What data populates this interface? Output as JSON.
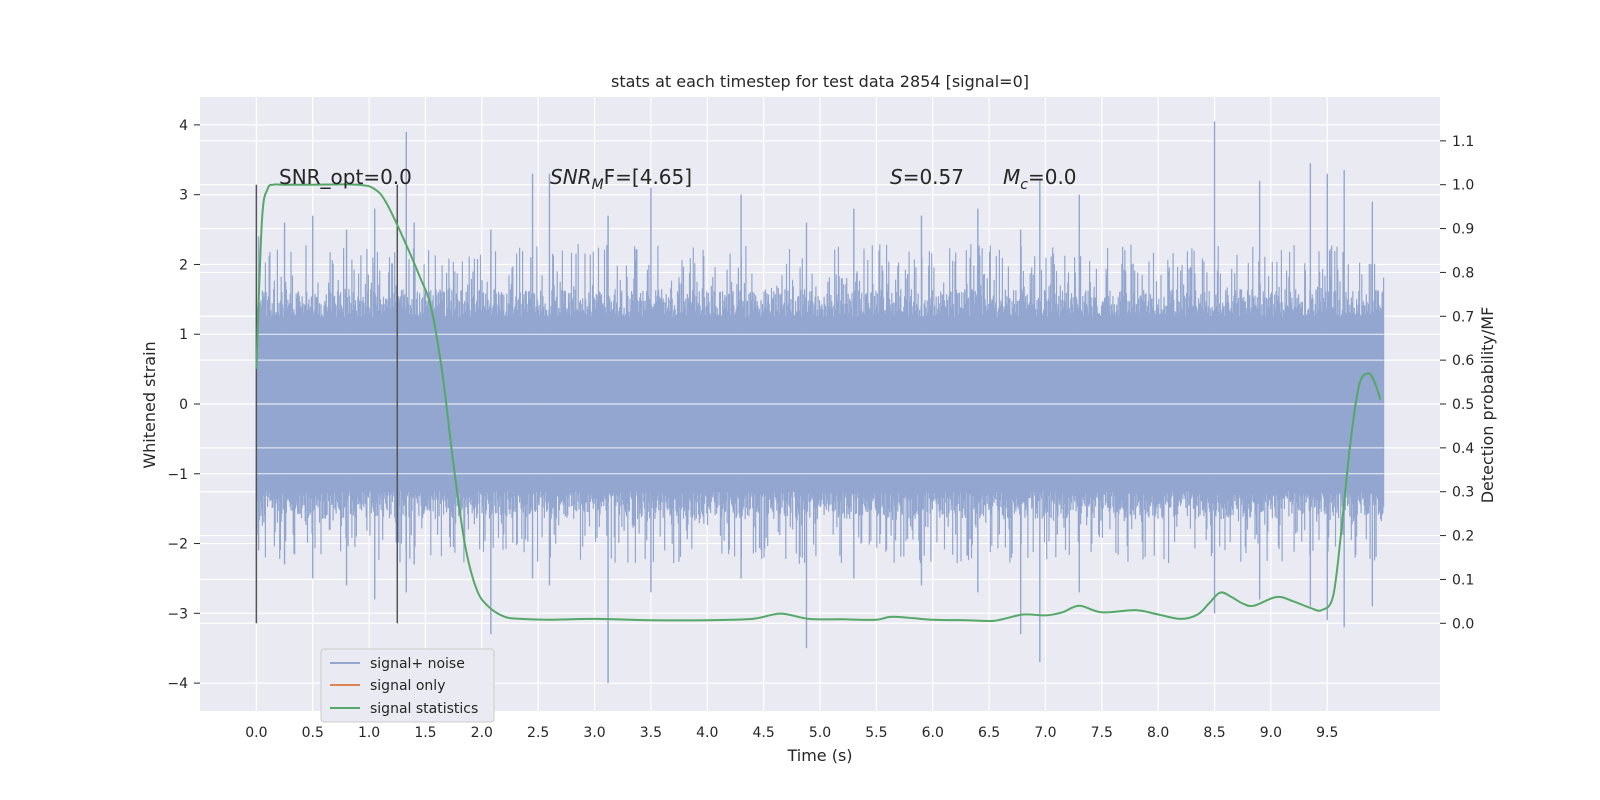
{
  "chart_data": {
    "type": "line",
    "title": "stats at each timestep for test data 2854 [signal=0]",
    "xlabel": "Time (s)",
    "ylabel_left": "Whitened strain",
    "ylabel_right": "Detection probability/MF",
    "xlim": [
      -0.5,
      10.5
    ],
    "ylim_left": [
      -4.4,
      4.4
    ],
    "ylim_right": [
      -0.2,
      1.2
    ],
    "x_ticks": [
      "0.0",
      "0.5",
      "1.0",
      "1.5",
      "2.0",
      "2.5",
      "3.0",
      "3.5",
      "4.0",
      "4.5",
      "5.0",
      "5.5",
      "6.0",
      "6.5",
      "7.0",
      "7.5",
      "8.0",
      "8.5",
      "9.0",
      "9.5"
    ],
    "y_left_ticks": [
      "−4",
      "−3",
      "−2",
      "−1",
      "0",
      "1",
      "2",
      "3",
      "4"
    ],
    "y_right_ticks": [
      "0.0",
      "0.1",
      "0.2",
      "0.3",
      "0.4",
      "0.5",
      "0.6",
      "0.7",
      "0.8",
      "0.9",
      "1.0",
      "1.1"
    ],
    "grid": true,
    "legend_position": "lower-left",
    "annotations": {
      "snr_opt": "SNR_opt=0.0",
      "snr_mf_main": "SNR",
      "snr_mf_sub": "M",
      "snr_mf_rest": "F=[4.65]",
      "s_var": "S",
      "s_val": "=0.57",
      "mc_var": "M",
      "mc_sub": "c",
      "mc_val": "=0.0"
    },
    "vertical_markers": [
      0.0,
      1.25
    ],
    "series": [
      {
        "name": "signal+ noise",
        "axis": "left",
        "color": "#92a6cf",
        "x_range": [
          0.0,
          10.0
        ],
        "envelope": {
          "core_band": [
            -1.25,
            1.25
          ],
          "spike_peaks": [
            [
              0.02,
              2.4,
              -2.1
            ],
            [
              0.25,
              2.6,
              -2.3
            ],
            [
              0.5,
              2.7,
              -2.5
            ],
            [
              0.8,
              2.5,
              -2.6
            ],
            [
              1.05,
              2.8,
              -2.8
            ],
            [
              1.33,
              3.9,
              -2.7
            ],
            [
              1.4,
              2.6,
              -2.3
            ],
            [
              2.08,
              2.5,
              -3.3
            ],
            [
              2.45,
              3.3,
              -2.5
            ],
            [
              2.6,
              3.3,
              -2.6
            ],
            [
              3.12,
              2.7,
              -4.0
            ],
            [
              3.5,
              3.1,
              -2.7
            ],
            [
              4.3,
              3.0,
              -2.5
            ],
            [
              4.88,
              2.6,
              -3.5
            ],
            [
              5.3,
              2.8,
              -2.5
            ],
            [
              5.9,
              2.7,
              -2.6
            ],
            [
              6.4,
              2.8,
              -2.7
            ],
            [
              6.78,
              2.5,
              -3.3
            ],
            [
              6.95,
              3.2,
              -3.7
            ],
            [
              7.3,
              3.0,
              -2.7
            ],
            [
              8.5,
              4.05,
              -3.0
            ],
            [
              8.9,
              3.2,
              -2.8
            ],
            [
              9.35,
              3.45,
              -2.9
            ],
            [
              9.5,
              3.3,
              -3.1
            ],
            [
              9.65,
              3.35,
              -3.2
            ],
            [
              9.9,
              2.9,
              -2.9
            ]
          ]
        }
      },
      {
        "name": "signal only",
        "axis": "left",
        "color": "#dd8452",
        "x": [],
        "y": []
      },
      {
        "name": "signal statistics",
        "axis": "right",
        "color": "#55a868",
        "x": [
          0.0,
          0.05,
          0.1,
          0.15,
          0.25,
          0.5,
          0.9,
          1.05,
          1.15,
          1.3,
          1.45,
          1.55,
          1.65,
          1.75,
          1.85,
          1.95,
          2.05,
          2.2,
          2.35,
          2.6,
          3.0,
          3.5,
          4.0,
          4.4,
          4.65,
          4.9,
          5.2,
          5.5,
          5.65,
          6.0,
          6.3,
          6.55,
          6.8,
          7.0,
          7.15,
          7.3,
          7.5,
          7.8,
          8.0,
          8.2,
          8.35,
          8.45,
          8.55,
          8.65,
          8.75,
          8.85,
          9.05,
          9.2,
          9.35,
          9.45,
          9.55,
          9.62,
          9.7,
          9.78,
          9.86,
          9.92,
          9.97
        ],
        "y": [
          0.58,
          0.92,
          0.99,
          1.0,
          1.0,
          1.0,
          1.0,
          0.99,
          0.96,
          0.88,
          0.79,
          0.72,
          0.57,
          0.36,
          0.18,
          0.08,
          0.04,
          0.015,
          0.01,
          0.008,
          0.01,
          0.007,
          0.007,
          0.01,
          0.022,
          0.01,
          0.009,
          0.008,
          0.015,
          0.008,
          0.007,
          0.006,
          0.02,
          0.018,
          0.025,
          0.04,
          0.025,
          0.03,
          0.02,
          0.01,
          0.02,
          0.045,
          0.07,
          0.06,
          0.045,
          0.04,
          0.06,
          0.05,
          0.035,
          0.03,
          0.06,
          0.2,
          0.4,
          0.54,
          0.57,
          0.55,
          0.51
        ]
      }
    ]
  }
}
